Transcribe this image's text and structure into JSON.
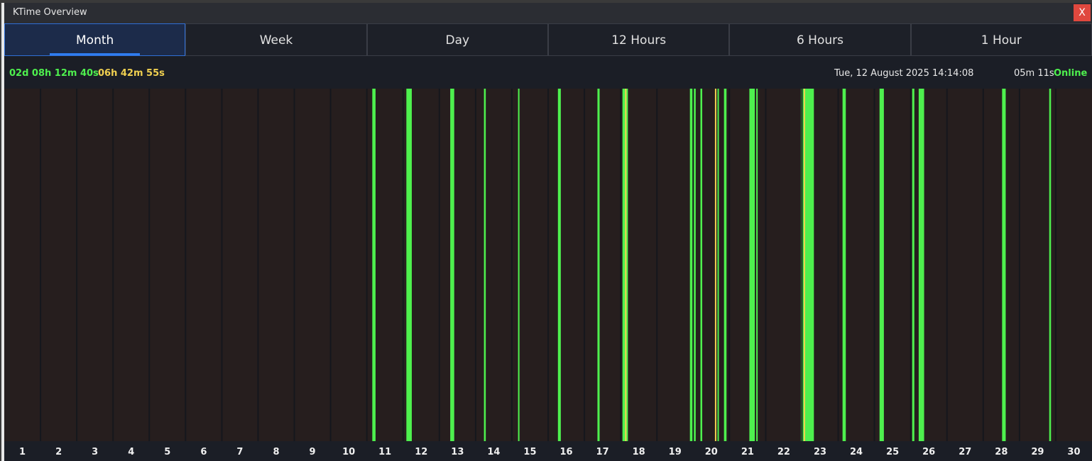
{
  "window": {
    "title": "KTime Overview",
    "close_label": "X"
  },
  "tabs": [
    {
      "label": "Month",
      "active": true
    },
    {
      "label": "Week"
    },
    {
      "label": "Day"
    },
    {
      "label": "12 Hours"
    },
    {
      "label": "6 Hours"
    },
    {
      "label": "1 Hour"
    }
  ],
  "status": {
    "online_total": "02d 08h 12m 40s",
    "idle_total": "06h 42m 55s",
    "datetime": "Tue, 12 August 2025 14:14:08",
    "session": "05m 11s",
    "state": "Online"
  },
  "colors": {
    "online": "#4ef04e",
    "idle": "#f0d050",
    "background": "#261e1e",
    "day_divider": "#15171d",
    "axis_background": "#1b1e26"
  },
  "chart_data": {
    "type": "timeline",
    "title": "Month",
    "days": [
      1,
      2,
      3,
      4,
      5,
      6,
      7,
      8,
      9,
      10,
      11,
      12,
      13,
      14,
      15,
      16,
      17,
      18,
      19,
      20,
      21,
      22,
      23,
      24,
      25,
      26,
      27,
      28,
      29,
      30
    ],
    "unit": "day",
    "segments": [
      {
        "start": 10.15,
        "end": 10.24,
        "state": "online"
      },
      {
        "start": 11.09,
        "end": 11.24,
        "state": "online"
      },
      {
        "start": 12.3,
        "end": 12.41,
        "state": "online"
      },
      {
        "start": 13.23,
        "end": 13.28,
        "state": "online"
      },
      {
        "start": 14.17,
        "end": 14.21,
        "state": "online"
      },
      {
        "start": 15.27,
        "end": 15.35,
        "state": "online"
      },
      {
        "start": 16.36,
        "end": 16.42,
        "state": "online"
      },
      {
        "start": 17.05,
        "end": 17.2,
        "state": "online"
      },
      {
        "start": 17.12,
        "end": 17.15,
        "state": "idle"
      },
      {
        "start": 18.91,
        "end": 19.07,
        "state": "online"
      },
      {
        "start": 19.2,
        "end": 19.25,
        "state": "online"
      },
      {
        "start": 19.6,
        "end": 19.64,
        "state": "idle"
      },
      {
        "start": 19.67,
        "end": 19.71,
        "state": "online"
      },
      {
        "start": 19.85,
        "end": 19.92,
        "state": "online"
      },
      {
        "start": 20.55,
        "end": 20.7,
        "state": "online"
      },
      {
        "start": 20.74,
        "end": 20.76,
        "state": "online"
      },
      {
        "start": 21.97,
        "end": 22.33,
        "state": "online"
      },
      {
        "start": 22.05,
        "end": 22.08,
        "state": "idle"
      },
      {
        "start": 23.12,
        "end": 23.21,
        "state": "online"
      },
      {
        "start": 24.14,
        "end": 24.26,
        "state": "online"
      },
      {
        "start": 25.04,
        "end": 25.1,
        "state": "online"
      },
      {
        "start": 25.22,
        "end": 25.37,
        "state": "online"
      },
      {
        "start": 27.52,
        "end": 27.62,
        "state": "online"
      },
      {
        "start": 28.82,
        "end": 28.87,
        "state": "online"
      }
    ]
  }
}
